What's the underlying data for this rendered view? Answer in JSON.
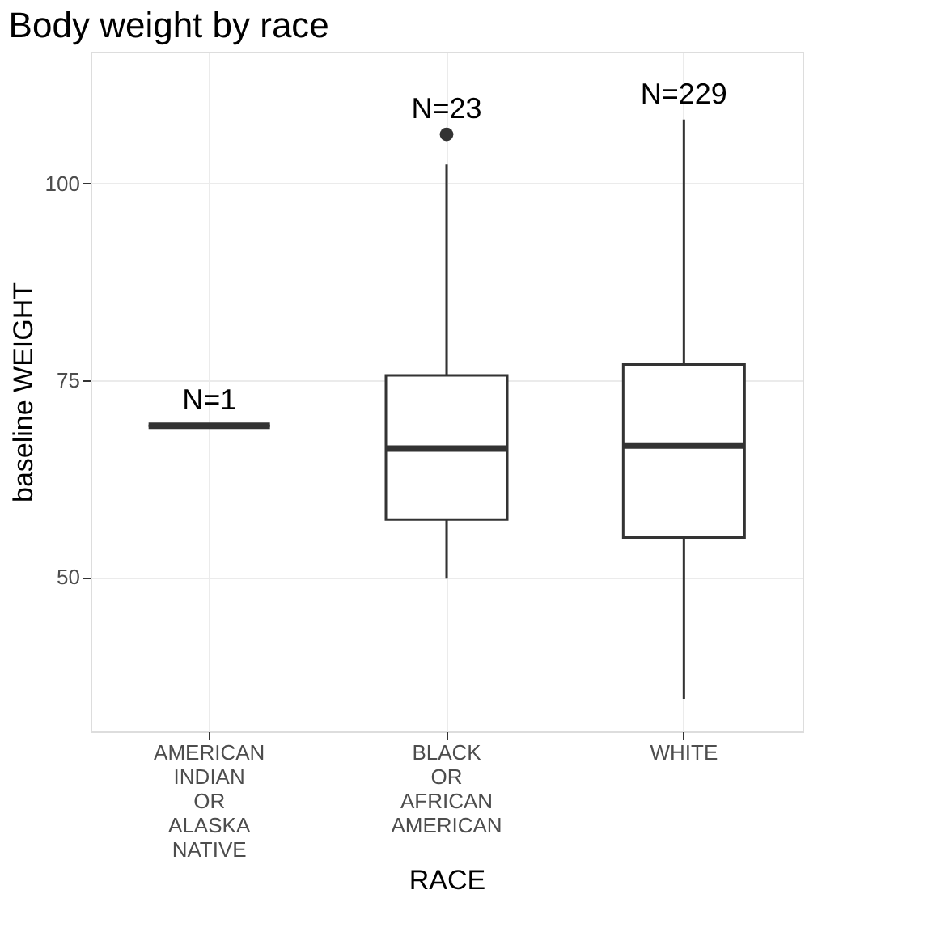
{
  "chart_data": {
    "type": "box",
    "title": "Body weight by race",
    "xlabel": "RACE",
    "ylabel": "baseline WEIGHT",
    "categories": [
      "AMERICAN INDIAN OR ALASKA NATIVE",
      "BLACK OR AFRICAN AMERICAN",
      "WHITE"
    ],
    "boxes": [
      {
        "low": 69.2,
        "q1": 69.2,
        "median": 69.2,
        "q3": 69.2,
        "high": 69.2
      },
      {
        "low": 49.8,
        "q1": 57.3,
        "median": 66.3,
        "q3": 75.6,
        "high": 102.4,
        "outliers": [
          106.2
        ]
      },
      {
        "low": 34.5,
        "q1": 55.0,
        "median": 66.7,
        "q3": 77.0,
        "high": 108.1
      }
    ],
    "ylim": [
      30.4,
      116.7
    ],
    "yticks": [
      50,
      75,
      100
    ],
    "grid": true,
    "annotations": [
      "N=1",
      "N=23",
      "N=229"
    ]
  }
}
